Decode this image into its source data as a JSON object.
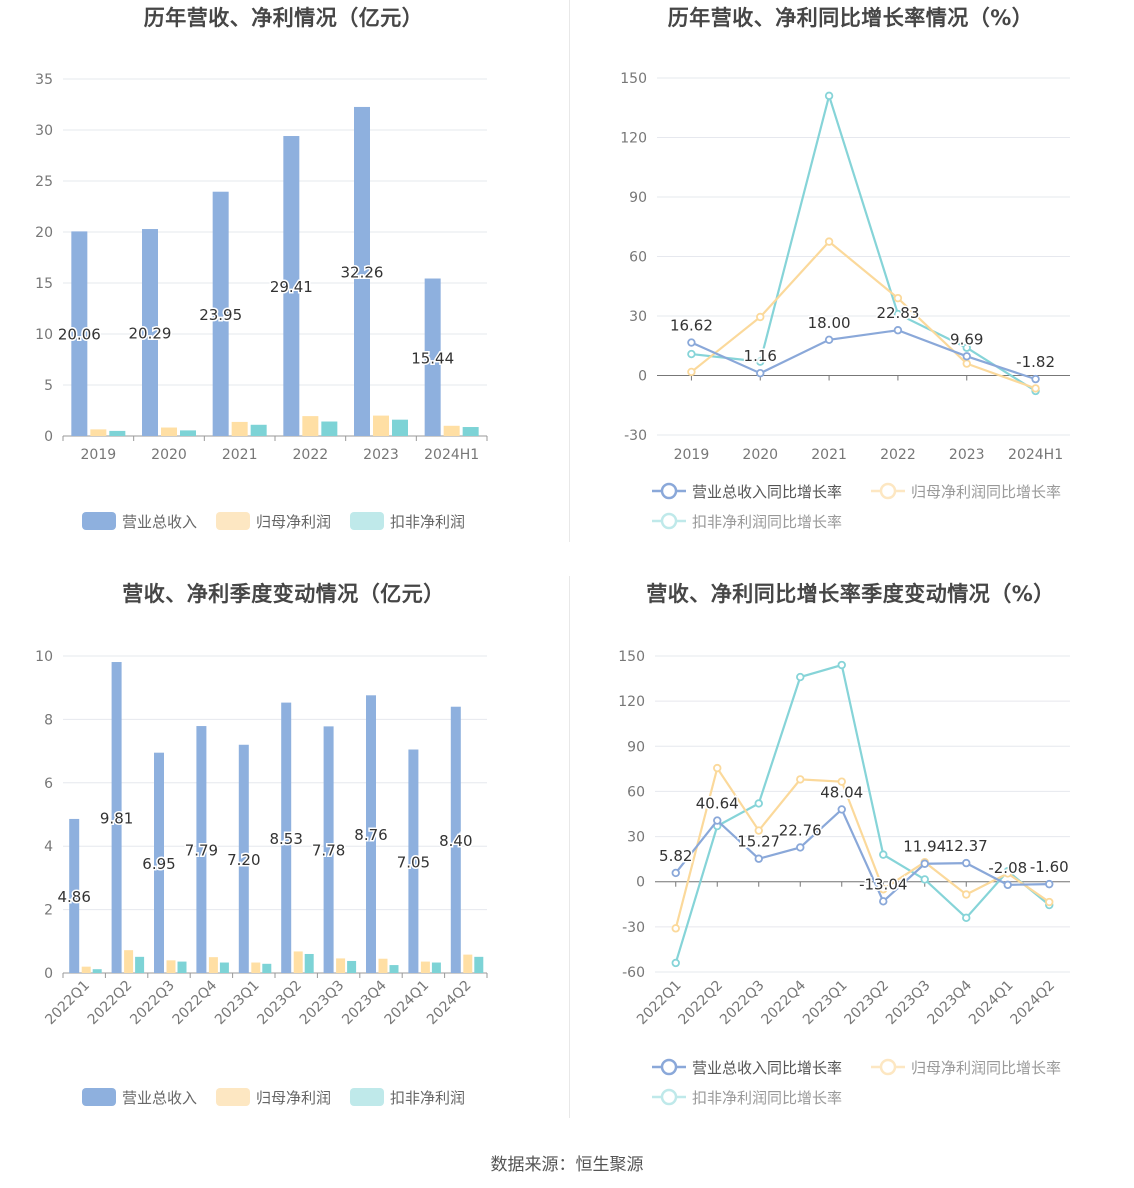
{
  "footer": "数据来源：恒生聚源",
  "colors": {
    "revenue": "#8eb0de",
    "net_profit": "#ffdfa4",
    "deducted_profit": "#7dd3d6",
    "revenue_line": "#8aa8d9",
    "net_line": "#fbd99b",
    "deducted_line": "#86d4d8",
    "legend_revenue": "#8eb0de",
    "legend_net": "#fde7c2",
    "legend_deducted": "#bfe9ea"
  },
  "chart_data": [
    {
      "id": "annual_amount",
      "type": "bar",
      "title": "历年营收、净利情况（亿元）",
      "categories": [
        "2019",
        "2020",
        "2021",
        "2022",
        "2023",
        "2024H1"
      ],
      "ylim": [
        0,
        35
      ],
      "yticks": [
        0,
        5,
        10,
        15,
        20,
        25,
        30,
        35
      ],
      "series": [
        {
          "name": "营业总收入",
          "values": [
            20.06,
            20.29,
            23.95,
            29.41,
            32.26,
            15.44
          ],
          "labels": [
            "20.06",
            "20.29",
            "23.95",
            "29.41",
            "32.26",
            "15.44"
          ]
        },
        {
          "name": "归母净利润",
          "values": [
            0.65,
            0.83,
            1.38,
            1.95,
            2.0,
            1.0
          ]
        },
        {
          "name": "扣非净利润",
          "values": [
            0.5,
            0.55,
            1.1,
            1.42,
            1.6,
            0.88
          ]
        }
      ]
    },
    {
      "id": "annual_growth",
      "type": "line",
      "title": "历年营收、净利同比增长率情况（%）",
      "categories": [
        "2019",
        "2020",
        "2021",
        "2022",
        "2023",
        "2024H1"
      ],
      "ylim": [
        -30,
        150
      ],
      "yticks": [
        -30,
        0,
        30,
        60,
        90,
        120,
        150
      ],
      "series": [
        {
          "name": "营业总收入同比增长率",
          "values": [
            16.62,
            1.16,
            18.0,
            22.83,
            9.69,
            -1.82
          ],
          "labels": [
            "16.62",
            "1.16",
            "18.00",
            "22.83",
            "9.69",
            "-1.82"
          ]
        },
        {
          "name": "归母净利润同比增长率",
          "values": [
            1.8,
            29.5,
            67.5,
            39.0,
            6.0,
            -6.5
          ]
        },
        {
          "name": "扣非净利润同比增长率",
          "values": [
            10.8,
            7.0,
            141.0,
            31.0,
            14.0,
            -7.8
          ]
        }
      ]
    },
    {
      "id": "quarterly_amount",
      "type": "bar",
      "title": "营收、净利季度变动情况（亿元）",
      "categories": [
        "2022Q1",
        "2022Q2",
        "2022Q3",
        "2022Q4",
        "2023Q1",
        "2023Q2",
        "2023Q3",
        "2023Q4",
        "2024Q1",
        "2024Q2"
      ],
      "ylim": [
        0,
        10
      ],
      "yticks": [
        0,
        2,
        4,
        6,
        8,
        10
      ],
      "series": [
        {
          "name": "营业总收入",
          "values": [
            4.86,
            9.81,
            6.95,
            7.79,
            7.2,
            8.53,
            7.78,
            8.76,
            7.05,
            8.4
          ],
          "labels": [
            "4.86",
            "9.81",
            "6.95",
            "7.79",
            "7.20",
            "8.53",
            "7.78",
            "8.76",
            "7.05",
            "8.40"
          ]
        },
        {
          "name": "归母净利润",
          "values": [
            0.2,
            0.72,
            0.4,
            0.5,
            0.33,
            0.68,
            0.46,
            0.45,
            0.36,
            0.58
          ]
        },
        {
          "name": "扣非净利润",
          "values": [
            0.12,
            0.51,
            0.36,
            0.33,
            0.29,
            0.6,
            0.38,
            0.25,
            0.33,
            0.51
          ]
        }
      ]
    },
    {
      "id": "quarterly_growth",
      "type": "line",
      "title": "营收、净利同比增长率季度变动情况（%）",
      "categories": [
        "2022Q1",
        "2022Q2",
        "2022Q3",
        "2022Q4",
        "2023Q1",
        "2023Q2",
        "2023Q3",
        "2023Q4",
        "2024Q1",
        "2024Q2"
      ],
      "ylim": [
        -60,
        150
      ],
      "yticks": [
        -60,
        -30,
        0,
        30,
        60,
        90,
        120,
        150
      ],
      "series": [
        {
          "name": "营业总收入同比增长率",
          "values": [
            5.82,
            40.64,
            15.27,
            22.76,
            48.04,
            -13.04,
            11.94,
            12.37,
            -2.08,
            -1.6
          ],
          "labels": [
            "5.82",
            "40.64",
            "15.27",
            "22.76",
            "48.04",
            "-13.04",
            "11.94",
            "12.37",
            "-2.08",
            "-1.60"
          ]
        },
        {
          "name": "归母净利润同比增长率",
          "values": [
            -31.0,
            75.5,
            34.0,
            68.0,
            66.5,
            -5.0,
            13.0,
            -8.5,
            5.5,
            -13.5
          ]
        },
        {
          "name": "扣非净利润同比增长率",
          "values": [
            -54.0,
            37.0,
            52.0,
            136.0,
            144.0,
            18.0,
            1.5,
            -24.0,
            7.0,
            -15.5
          ]
        }
      ]
    }
  ]
}
